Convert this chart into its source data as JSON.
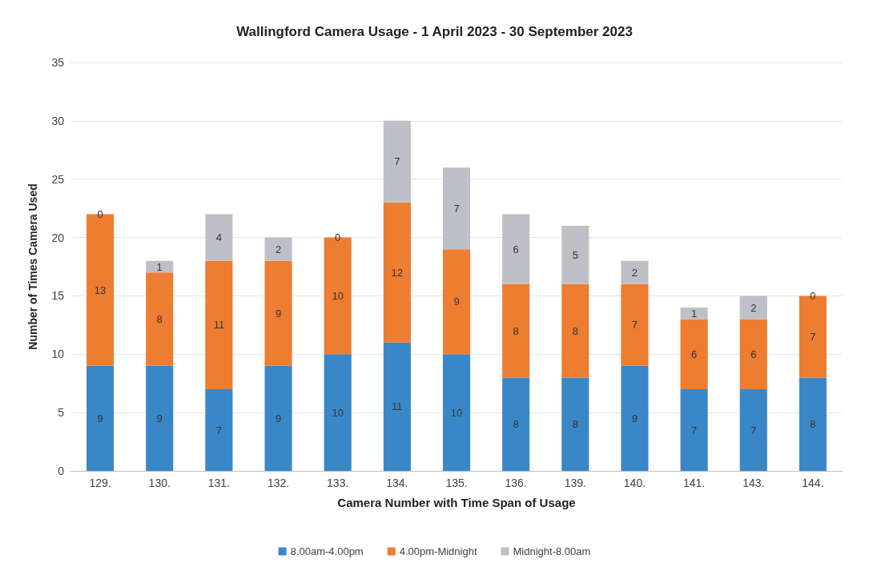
{
  "chart_data": {
    "type": "bar",
    "title": "Wallingford Camera Usage - 1 April 2023 - 30 September 2023",
    "xlabel": "Camera Number with Time Span of Usage",
    "ylabel": "Number of Times Camera Used",
    "categories": [
      "129.",
      "130.",
      "131.",
      "132.",
      "133.",
      "134.",
      "135.",
      "136.",
      "139.",
      "140.",
      "141.",
      "143.",
      "144."
    ],
    "series": [
      {
        "name": "8.00am-4.00pm",
        "color": "#3a87c8",
        "values": [
          9,
          9,
          7,
          9,
          10,
          11,
          10,
          8,
          8,
          9,
          7,
          7,
          8
        ]
      },
      {
        "name": "4.00pm-Midnight",
        "color": "#ed7d31",
        "values": [
          13,
          8,
          11,
          9,
          10,
          12,
          9,
          8,
          8,
          7,
          6,
          6,
          7
        ]
      },
      {
        "name": "Midnight-8.00am",
        "color": "#bfbfc7",
        "values": [
          0,
          1,
          4,
          2,
          0,
          7,
          7,
          6,
          5,
          2,
          1,
          2,
          0
        ]
      }
    ],
    "stacked": true,
    "data_labels": true,
    "ylim": [
      0,
      35
    ],
    "yticks": [
      0,
      5,
      10,
      15,
      20,
      25,
      30,
      35
    ],
    "grid": "y",
    "legend": "bottom"
  }
}
